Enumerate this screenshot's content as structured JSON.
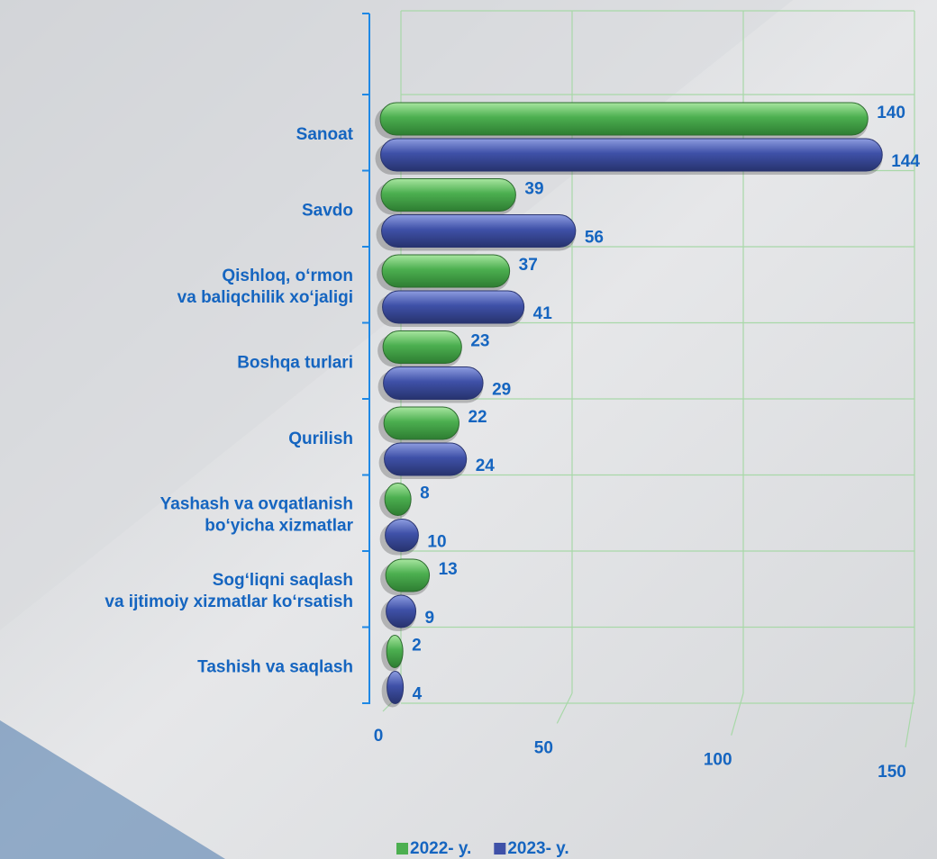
{
  "chart_data": {
    "type": "bar",
    "orientation": "horizontal",
    "categories": [
      "Sanoat",
      "Savdo",
      "Qishloq, o‘rmon\nva baliqchilik xo‘jaligi",
      "Boshqa turlari",
      "Qurilish",
      "Yashash va ovqatlanish\nbo‘yicha xizmatlar",
      "Sog‘liqni saqlash\nva ijtimoiy xizmatlar ko‘rsatish",
      "Tashish va saqlash"
    ],
    "series": [
      {
        "name": "2022- y.",
        "color": "#4caf50",
        "values": [
          140,
          39,
          37,
          23,
          22,
          8,
          13,
          2
        ]
      },
      {
        "name": "2023- y.",
        "color": "#3f51a8",
        "values": [
          144,
          56,
          41,
          29,
          24,
          10,
          9,
          4
        ]
      }
    ],
    "xlim": [
      0,
      150
    ],
    "xticks": [
      0,
      50,
      100,
      150
    ],
    "grid": true,
    "legend": "bottom"
  }
}
